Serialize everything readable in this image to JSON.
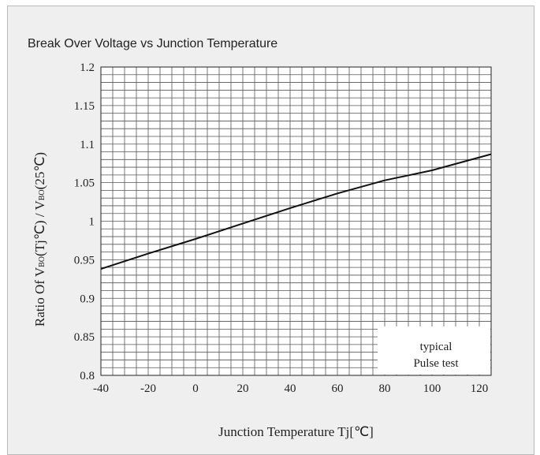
{
  "chart_data": {
    "type": "line",
    "title": "Break Over Voltage vs Junction Temperature",
    "xlabel": "Junction Temperature Tj[℃]",
    "ylabel": "Ratio Of V_BO(Tj℃) / V_BO(25℃)",
    "ylabel_parts": {
      "p1": "Ratio Of V",
      "sub1": "BO",
      "p2": "(Tj℃) / V",
      "sub2": "BO",
      "p3": "(25℃)"
    },
    "xlim": [
      -40,
      125
    ],
    "ylim": [
      0.8,
      1.2
    ],
    "x_ticks": [
      "-40",
      "-20",
      "0",
      "20",
      "40",
      "60",
      "80",
      "100",
      "120"
    ],
    "y_ticks": [
      "0.8",
      "0.85",
      "0.9",
      "0.95",
      "1",
      "1.05",
      "1.1",
      "1.15",
      "1.2"
    ],
    "grid": true,
    "series": [
      {
        "x": [
          -40,
          -20,
          0,
          20,
          40,
          60,
          80,
          100,
          125
        ],
        "y": [
          0.938,
          0.958,
          0.977,
          0.997,
          1.017,
          1.036,
          1.053,
          1.066,
          1.087
        ]
      }
    ],
    "legend_lines": [
      "typical",
      "Pulse test"
    ],
    "legend_position": "bottom-right"
  }
}
